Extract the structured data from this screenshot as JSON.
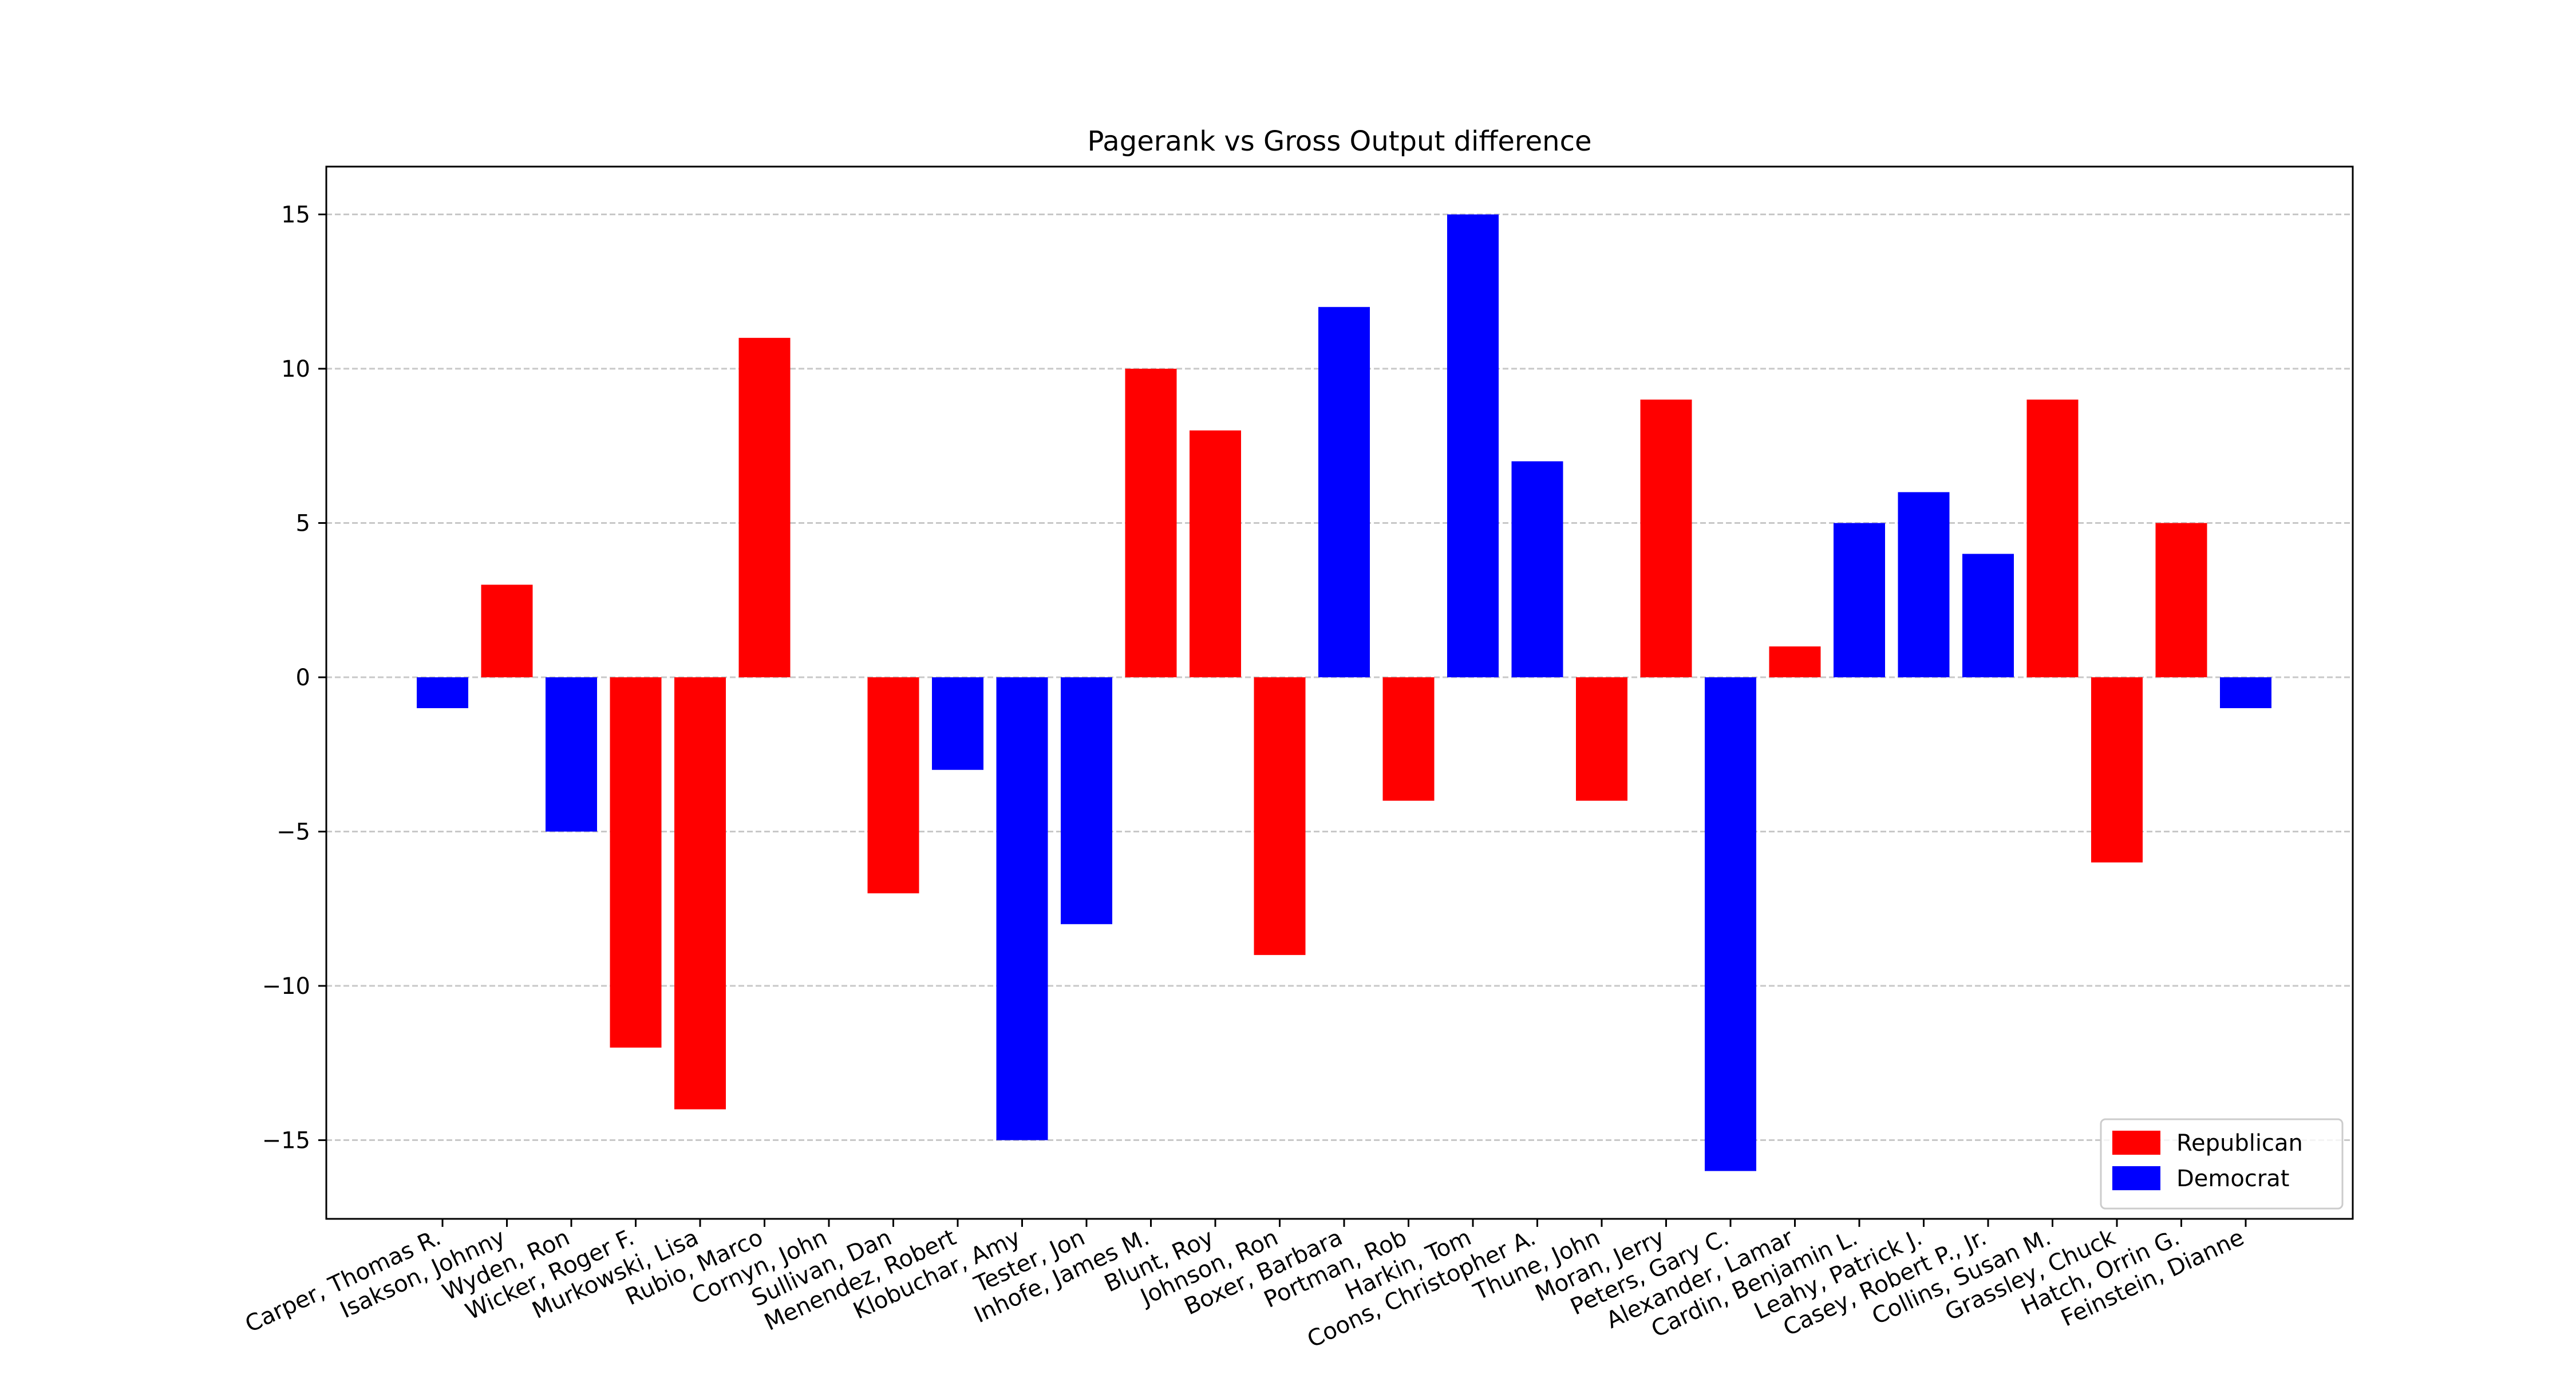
{
  "chart_data": {
    "type": "bar",
    "title": "Pagerank vs Gross Output difference",
    "xlabel": "",
    "ylabel": "",
    "ylim": [
      -17.55,
      16.55
    ],
    "yticks": [
      -15,
      -10,
      -5,
      0,
      5,
      10,
      15
    ],
    "grid": {
      "axis": "y",
      "style": "dashed",
      "color": "#c8c8c8"
    },
    "legend": {
      "position": "lower-right",
      "entries": [
        {
          "label": "Republican",
          "color": "#ff0000"
        },
        {
          "label": "Democrat",
          "color": "#0000ff"
        }
      ]
    },
    "categories": [
      "Carper, Thomas R.",
      "Isakson, Johnny",
      "Wyden, Ron",
      "Wicker, Roger F.",
      "Murkowski, Lisa",
      "Rubio, Marco",
      "Cornyn, John",
      "Sullivan, Dan",
      "Menendez, Robert",
      "Klobuchar, Amy",
      "Tester, Jon",
      "Inhofe, James M.",
      "Blunt, Roy",
      "Johnson, Ron",
      "Boxer, Barbara",
      "Portman, Rob",
      "Harkin, Tom",
      "Coons, Christopher A.",
      "Thune, John",
      "Moran, Jerry",
      "Peters, Gary C.",
      "Alexander, Lamar",
      "Cardin, Benjamin L.",
      "Leahy, Patrick J.",
      "Casey, Robert P., Jr.",
      "Collins, Susan M.",
      "Grassley, Chuck",
      "Hatch, Orrin G.",
      "Feinstein, Dianne"
    ],
    "values": [
      -1,
      3,
      -5,
      -12,
      -14,
      11,
      0,
      -7,
      -3,
      -15,
      -8,
      10,
      8,
      -9,
      12,
      -4,
      15,
      7,
      -4,
      9,
      -16,
      1,
      5,
      6,
      4,
      9,
      -6,
      5,
      -1
    ],
    "party": [
      "Democrat",
      "Republican",
      "Democrat",
      "Republican",
      "Republican",
      "Republican",
      "Republican",
      "Republican",
      "Democrat",
      "Democrat",
      "Democrat",
      "Republican",
      "Republican",
      "Republican",
      "Democrat",
      "Republican",
      "Democrat",
      "Democrat",
      "Republican",
      "Republican",
      "Democrat",
      "Republican",
      "Democrat",
      "Democrat",
      "Democrat",
      "Republican",
      "Republican",
      "Republican",
      "Democrat"
    ],
    "colors": {
      "Republican": "#ff0000",
      "Democrat": "#0000ff"
    }
  }
}
